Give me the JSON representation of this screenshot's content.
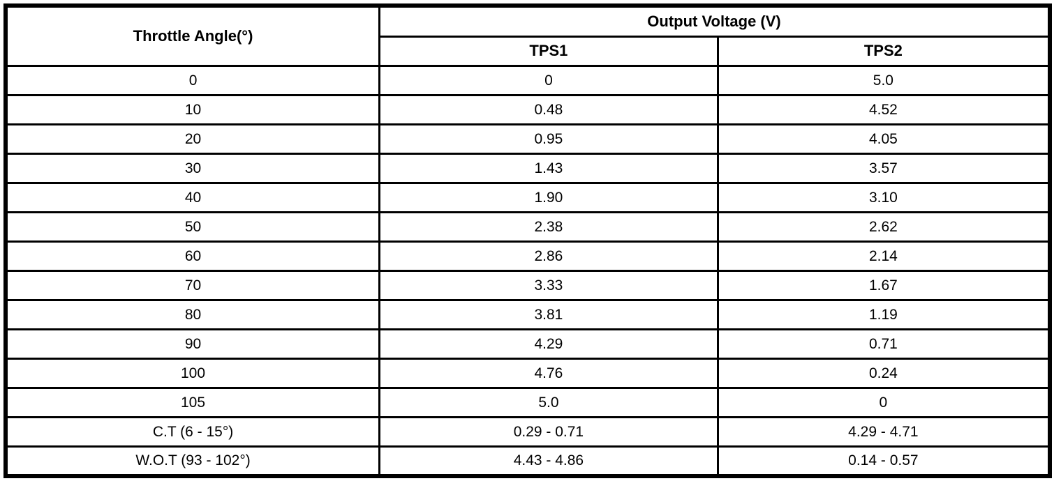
{
  "table": {
    "header": {
      "angle_label": "Throttle Angle(°)",
      "output_voltage_label": "Output Voltage (V)",
      "tps1_label": "TPS1",
      "tps2_label": "TPS2"
    },
    "rows": [
      {
        "angle": "0",
        "tps1": "0",
        "tps2": "5.0"
      },
      {
        "angle": "10",
        "tps1": "0.48",
        "tps2": "4.52"
      },
      {
        "angle": "20",
        "tps1": "0.95",
        "tps2": "4.05"
      },
      {
        "angle": "30",
        "tps1": "1.43",
        "tps2": "3.57"
      },
      {
        "angle": "40",
        "tps1": "1.90",
        "tps2": "3.10"
      },
      {
        "angle": "50",
        "tps1": "2.38",
        "tps2": "2.62"
      },
      {
        "angle": "60",
        "tps1": "2.86",
        "tps2": "2.14"
      },
      {
        "angle": "70",
        "tps1": "3.33",
        "tps2": "1.67"
      },
      {
        "angle": "80",
        "tps1": "3.81",
        "tps2": "1.19"
      },
      {
        "angle": "90",
        "tps1": "4.29",
        "tps2": "0.71"
      },
      {
        "angle": "100",
        "tps1": "4.76",
        "tps2": "0.24"
      },
      {
        "angle": "105",
        "tps1": "5.0",
        "tps2": "0"
      },
      {
        "angle": "C.T (6 - 15°)",
        "tps1": "0.29 - 0.71",
        "tps2": "4.29 - 4.71"
      },
      {
        "angle": "W.O.T (93 - 102°)",
        "tps1": "4.43 - 4.86",
        "tps2": "0.14 - 0.57"
      }
    ]
  },
  "colors": {
    "border": "#000000",
    "background": "#ffffff",
    "text": "#000000"
  }
}
